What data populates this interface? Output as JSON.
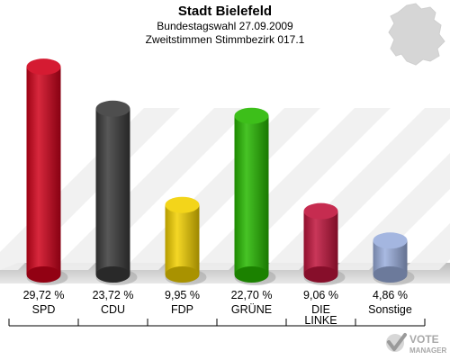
{
  "header": {
    "title": "Stadt Bielefeld",
    "subtitle1": "Bundestagswahl 27.09.2009",
    "subtitle2": "Zweitstimmen Stimmbezirk 017.1"
  },
  "logo": {
    "text_top": "VOTE",
    "text_bottom": "MANAGER"
  },
  "chart_data": {
    "type": "bar",
    "categories": [
      "SPD",
      "CDU",
      "FDP",
      "GRÜNE",
      "DIE LINKE",
      "Sonstige"
    ],
    "category_lines": [
      [
        "SPD"
      ],
      [
        "CDU"
      ],
      [
        "FDP"
      ],
      [
        "GRÜNE"
      ],
      [
        "DIE",
        "LINKE"
      ],
      [
        "Sonstige"
      ]
    ],
    "values": [
      29.72,
      23.72,
      9.95,
      22.7,
      9.06,
      4.86
    ],
    "value_labels": [
      "29,72 %",
      "23,72 %",
      "9,95 %",
      "22,70 %",
      "9,06 %",
      "4,86 %"
    ],
    "colors": [
      "#d0021b",
      "#3a3a3a",
      "#f2d000",
      "#27b800",
      "#c0143c",
      "#9aaedd"
    ],
    "ylim": [
      0,
      30
    ],
    "grid": false,
    "legend": "none"
  }
}
